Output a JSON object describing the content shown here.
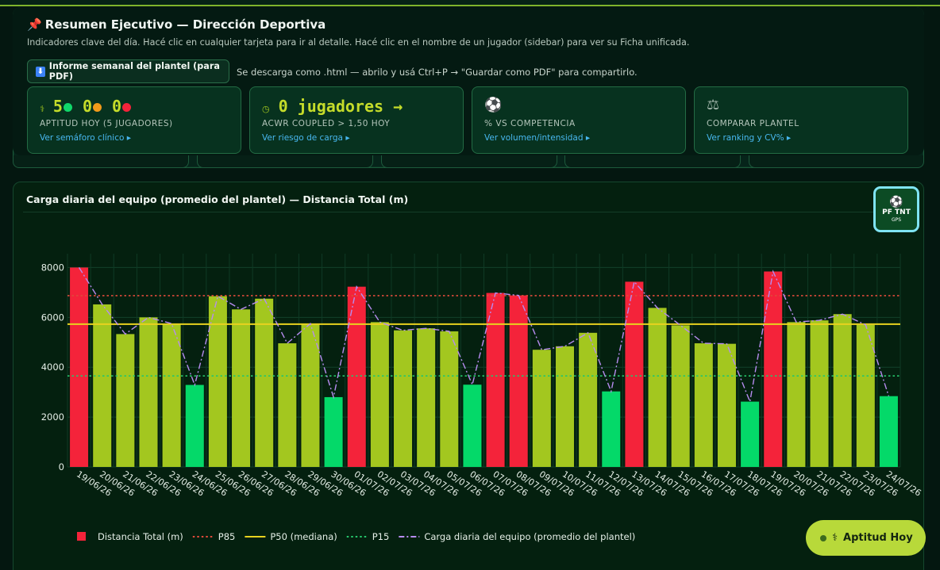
{
  "exec": {
    "title": "Resumen Ejecutivo — Dirección Deportiva",
    "pin_icon": "pushpin-icon",
    "subtitle": "Indicadores clave del día. Hacé clic en cualquier tarjeta para ir al detalle. Hacé clic en el nombre de un jugador (sidebar) para ver su Ficha unificada.",
    "report_button": "Informe semanal del plantel (para PDF)",
    "report_note": "Se descarga como .html — abrilo y usá Ctrl+P → \"Guardar como PDF\" para compartirlo.",
    "kpis": [
      {
        "icon": "medical-icon",
        "icon_glyph": "⚕",
        "green": "5",
        "orange": "0",
        "red": "0",
        "label": "APTITUD HOY (5 JUGADORES)",
        "link": "Ver semáforo clínico ▸"
      },
      {
        "icon": "clock-icon",
        "icon_glyph": "◷",
        "value": "0 jugadores →",
        "label": "ACWR COUPLED > 1,50 HOY",
        "link": "Ver riesgo de carga ▸"
      },
      {
        "icon": "soccer-ball-icon",
        "icon_glyph": "⚽",
        "label": "% VS COMPETENCIA",
        "link": "Ver volumen/intensidad ▸"
      },
      {
        "icon": "balance-scale-icon",
        "icon_glyph": "⚖",
        "label": "COMPARAR PLANTEL",
        "link": "Ver ranking y CV% ▸"
      }
    ]
  },
  "chart": {
    "title": "Carga diaria del equipo (promedio del plantel) — Distancia Total (m)",
    "logo": {
      "brand": "PF TNT",
      "sub": "GPS",
      "icon": "soccer-ball-icon"
    }
  },
  "aptitud_button": "Aptitud Hoy",
  "colors": {
    "red": "#f4233a",
    "lime": "#a3c71f",
    "green": "#04d969",
    "p85": "#e04a3a",
    "p50": "#e8d21f",
    "p15": "#26c56b",
    "avg": "#b78cf0"
  },
  "chart_data": {
    "type": "bar",
    "title": "Carga diaria del equipo (promedio del plantel) — Distancia Total (m)",
    "categories": [
      "19/06/26",
      "20/06/26",
      "21/06/26",
      "22/06/26",
      "23/06/26",
      "24/06/26",
      "25/06/26",
      "26/06/26",
      "27/06/26",
      "28/06/26",
      "29/06/26",
      "30/06/26",
      "01/07/26",
      "02/07/26",
      "03/07/26",
      "04/07/26",
      "05/07/26",
      "06/07/26",
      "07/07/26",
      "08/07/26",
      "09/07/26",
      "10/07/26",
      "11/07/26",
      "12/07/26",
      "13/07/26",
      "14/07/26",
      "15/07/26",
      "16/07/26",
      "17/07/26",
      "18/07/26",
      "19/07/26",
      "20/07/26",
      "21/07/26",
      "22/07/26",
      "23/07/26",
      "24/07/26"
    ],
    "values": [
      8000,
      6520,
      5330,
      6000,
      5750,
      3290,
      6850,
      6320,
      6750,
      4960,
      5750,
      2800,
      7230,
      5810,
      5480,
      5560,
      5440,
      3300,
      6980,
      6880,
      4700,
      4840,
      5380,
      3030,
      7430,
      6380,
      5680,
      4960,
      4940,
      2620,
      7840,
      5810,
      5880,
      6130,
      5700,
      2840
    ],
    "bar_colors": [
      "red",
      "lime",
      "lime",
      "lime",
      "lime",
      "green",
      "lime",
      "lime",
      "lime",
      "lime",
      "lime",
      "green",
      "red",
      "lime",
      "lime",
      "lime",
      "lime",
      "green",
      "red",
      "red",
      "lime",
      "lime",
      "lime",
      "green",
      "red",
      "lime",
      "lime",
      "lime",
      "lime",
      "green",
      "red",
      "lime",
      "lime",
      "lime",
      "lime",
      "green"
    ],
    "reference_lines": {
      "P85": 6870,
      "P50": 5730,
      "P15": 3650
    },
    "ylim": [
      0,
      8300
    ],
    "yticks": [
      0,
      2000,
      4000,
      6000,
      8000
    ],
    "legend": [
      {
        "label": "Distancia Total (m)",
        "style": "bar",
        "color": "#f4233a"
      },
      {
        "label": "P85",
        "style": "dotted",
        "color": "#e04a3a"
      },
      {
        "label": "P50 (mediana)",
        "style": "solid",
        "color": "#e8d21f"
      },
      {
        "label": "P15",
        "style": "dotted",
        "color": "#26c56b"
      },
      {
        "label": "Carga diaria del equipo (promedio del plantel)",
        "style": "dashdot",
        "color": "#b78cf0"
      }
    ],
    "legend_position": "bottom-left",
    "grid": true
  }
}
